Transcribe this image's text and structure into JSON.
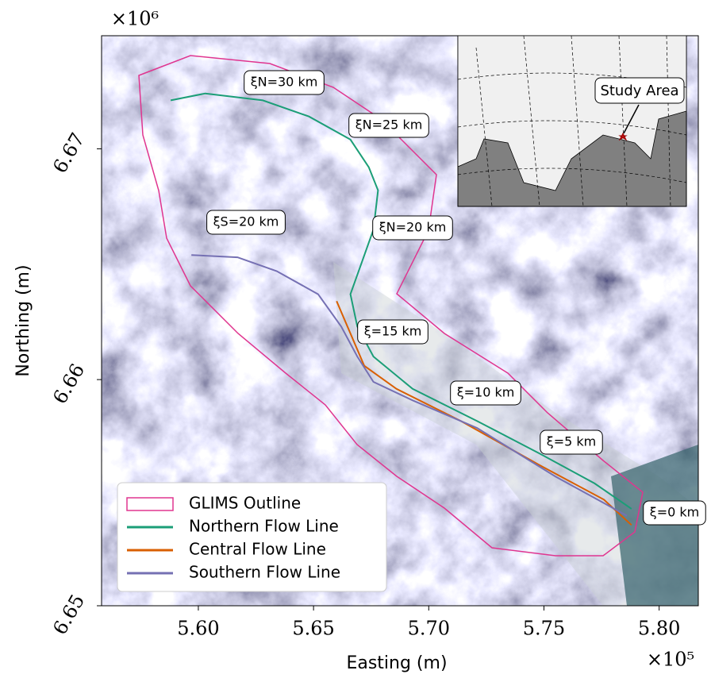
{
  "chart_data": {
    "type": "map",
    "xlabel": "Easting (m)",
    "ylabel": "Northing (m)",
    "x_offset_label": "×10⁵",
    "y_offset_label": "×10⁶",
    "xlim": [
      555800,
      581700
    ],
    "ylim": [
      6650200,
      6674900
    ],
    "xticks": [
      {
        "value": 560000,
        "label": "5.60"
      },
      {
        "value": 565000,
        "label": "5.65"
      },
      {
        "value": 570000,
        "label": "5.70"
      },
      {
        "value": 575000,
        "label": "5.75"
      },
      {
        "value": 580000,
        "label": "5.80"
      }
    ],
    "yticks": [
      {
        "value": 6650000,
        "label": "6.65"
      },
      {
        "value": 6660000,
        "label": "6.66"
      },
      {
        "value": 6670000,
        "label": "6.67"
      }
    ],
    "outline": {
      "name": "GLIMS Outline",
      "color": "#e0358f"
    },
    "series": [
      {
        "name": "Northern Flow Line",
        "color": "#1b9e77",
        "x": [
          558800,
          560300,
          562800,
          564800,
          566600,
          567400,
          567800,
          567600,
          567100,
          566600,
          566900,
          567600,
          569300,
          572100,
          574800,
          577200,
          578800
        ],
        "values": [
          6672100,
          6672400,
          6672100,
          6671400,
          6670400,
          6669200,
          6668200,
          6666500,
          6665100,
          6663700,
          6662300,
          6661000,
          6659600,
          6658200,
          6656800,
          6655500,
          6654400
        ]
      },
      {
        "name": "Central Flow Line",
        "color": "#d95f02",
        "x": [
          566000,
          566600,
          567200,
          568600,
          571400,
          574800,
          577600,
          578800
        ],
        "values": [
          6663400,
          6662000,
          6660600,
          6659600,
          6658200,
          6656300,
          6654800,
          6653700
        ]
      },
      {
        "name": "Southern Flow Line",
        "color": "#7570b3",
        "x": [
          559700,
          561700,
          563400,
          565200,
          566200,
          566900,
          567600,
          569300,
          572100,
          575500,
          578600
        ],
        "values": [
          6665400,
          6665300,
          6664700,
          6663700,
          6662300,
          6661000,
          6659900,
          6659100,
          6657900,
          6655800,
          6654100
        ]
      }
    ],
    "annotations": [
      "ξN=30 km",
      "ξN=25 km",
      "ξS=20 km",
      "ξN=20 km",
      "ξ=15 km",
      "ξ=10 km",
      "ξ=5 km",
      "ξ=0 km"
    ],
    "inset_label": "Study Area"
  }
}
